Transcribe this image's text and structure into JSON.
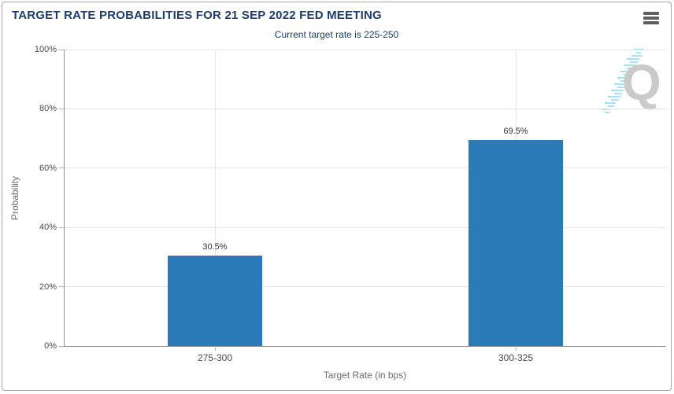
{
  "header": {
    "title": "TARGET RATE PROBABILITIES FOR 21 SEP 2022 FED MEETING",
    "subtitle": "Current target rate is 225-250"
  },
  "watermark": {
    "letter": "Q"
  },
  "colors": {
    "title_text": "#1c3d6e",
    "bar_fill": "#2b7bb9",
    "gridline": "#e4e4e4",
    "axis_line": "#8f8f8f",
    "tick_label": "#4a4a4a",
    "axis_title": "#6b6b6b",
    "widget_border": "#a6a6a6",
    "menu_icon": "#5f5f5f",
    "watermark_q": "#cacaca",
    "watermark_dashes": "#a5e2f3"
  },
  "chart_data": {
    "type": "bar",
    "title": "TARGET RATE PROBABILITIES FOR 21 SEP 2022 FED MEETING",
    "subtitle": "Current target rate is 225-250",
    "categories": [
      "275-300",
      "300-325"
    ],
    "values": [
      30.5,
      69.5
    ],
    "value_labels": [
      "30.5%",
      "69.5%"
    ],
    "xlabel": "Target Rate (in bps)",
    "ylabel": "Probability",
    "ylim": [
      0,
      100
    ],
    "ytick_values": [
      0,
      20,
      40,
      60,
      80,
      100
    ],
    "ytick_labels": [
      "0%",
      "20%",
      "40%",
      "60%",
      "80%",
      "100%"
    ],
    "grid": true,
    "legend": false,
    "bar_color": "#2b7bb9"
  }
}
